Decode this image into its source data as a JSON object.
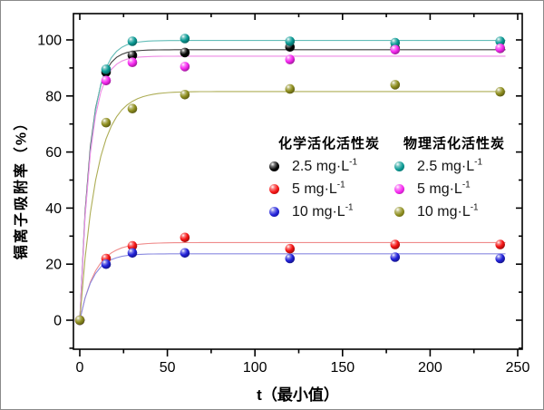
{
  "chart_data": {
    "type": "scatter",
    "title": "",
    "xlabel": "t（最小值）",
    "ylabel": "镉离子吸附率（%）",
    "xlim": [
      -4,
      253
    ],
    "ylim": [
      -10.7,
      109.4
    ],
    "x_ticks": [
      0,
      50,
      100,
      150,
      200,
      250
    ],
    "x_tick_labels": [
      "0",
      "50",
      "100",
      "150",
      "200",
      "250"
    ],
    "x_minor_step": 25,
    "y_ticks": [
      0,
      20,
      40,
      60,
      80,
      100
    ],
    "y_tick_labels": [
      "0",
      "20",
      "40",
      "60",
      "80",
      "100"
    ],
    "y_minor_step": 10,
    "grid": false,
    "legend_position": "inside-center-right",
    "x": [
      0,
      15,
      30,
      60,
      120,
      180,
      240
    ],
    "series": [
      {
        "name": "化学活化活性炭 2.5 mg·L⁻¹",
        "group": "化学活化活性炭",
        "conc": "2.5 mg·L",
        "sup": "-1",
        "color": "#050505",
        "line_color": "#3f3f3f",
        "fit_A": 96.5,
        "fit_k": 0.17,
        "values": [
          0,
          88.5,
          94.5,
          95.5,
          97.5,
          97.0,
          97.0
        ]
      },
      {
        "name": "化学活化活性炭 5 mg·L⁻¹",
        "group": "化学活化活性炭",
        "conc": "5 mg·L",
        "sup": "-1",
        "color": "#f51414",
        "line_color": "#ef8a8a",
        "fit_A": 27.7,
        "fit_k": 0.112,
        "values": [
          0,
          22,
          26.5,
          29.5,
          25.5,
          27,
          27
        ]
      },
      {
        "name": "化学活化活性炭 10 mg·L⁻¹",
        "group": "化学活化活性炭",
        "conc": "10 mg·L",
        "sup": "-1",
        "color": "#2121d9",
        "line_color": "#8a8ae0",
        "fit_A": 23.7,
        "fit_k": 0.135,
        "values": [
          0,
          20,
          24,
          24,
          22,
          22.5,
          22
        ]
      },
      {
        "name": "物理活化活性炭 2.5 mg·L⁻¹",
        "group": "物理活化活性炭",
        "conc": "2.5 mg·L",
        "sup": "-1",
        "color": "#0a9a94",
        "line_color": "#63bdb8",
        "fit_A": 99.8,
        "fit_k": 0.155,
        "values": [
          0,
          89.5,
          99.5,
          100.5,
          99.5,
          99,
          99.5
        ]
      },
      {
        "name": "物理活化活性炭 5 mg·L⁻¹",
        "group": "物理活化活性炭",
        "conc": "5 mg·L",
        "sup": "-1",
        "color": "#f628f0",
        "line_color": "#ee8ae4",
        "fit_A": 94.2,
        "fit_k": 0.166,
        "values": [
          0,
          85.5,
          92,
          90.5,
          93,
          96.5,
          97
        ]
      },
      {
        "name": "物理活化活性炭 10 mg·L⁻¹",
        "group": "物理活化活性炭",
        "conc": "10 mg·L",
        "sup": "-1",
        "color": "#8f8f1f",
        "line_color": "#adad55",
        "fit_A": 81.6,
        "fit_k": 0.105,
        "values": [
          0,
          70.5,
          75.5,
          80.5,
          82.5,
          84,
          81.5
        ]
      }
    ],
    "legend": {
      "groups": [
        {
          "title": "化学活化活性炭"
        },
        {
          "title": "物理活化活性炭"
        }
      ]
    }
  }
}
